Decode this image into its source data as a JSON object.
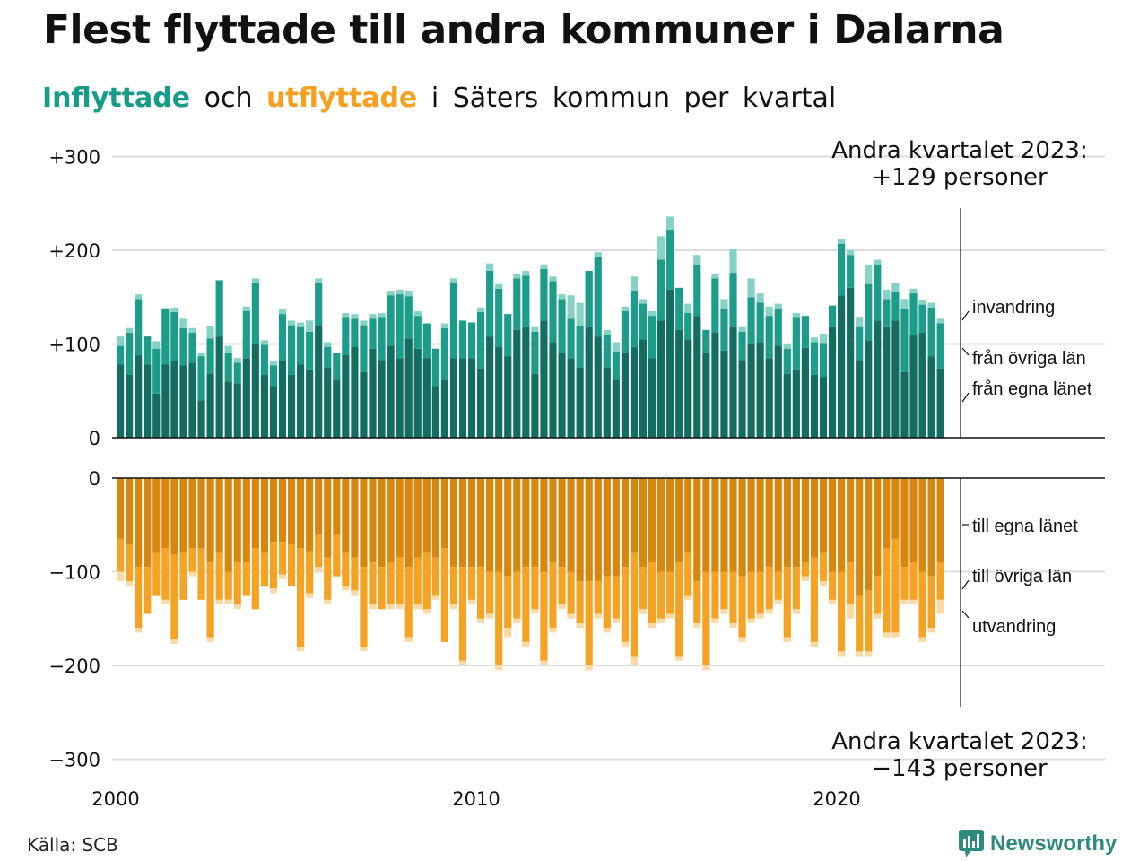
{
  "title": "Flest flyttade till andra kommuner i Dalarna",
  "subtitle": {
    "inflyttade": "Inflyttade",
    "och": "och",
    "utflyttade": "utflyttade",
    "rest": "i Säters kommun per kvartal"
  },
  "source": "Källa: SCB",
  "brand": "Newsworthy",
  "colors": {
    "in_egna": "#136e61",
    "in_ovriga": "#1d9c89",
    "in_invandring": "#86d3c6",
    "ut_egna": "#d6870f",
    "ut_ovriga": "#f5a324",
    "ut_utvandring": "#f9d9a6"
  },
  "chart_data": [
    {
      "type": "bar",
      "stacked": true,
      "panel": "top",
      "annotation_line1": "Andra kvartalet 2023:",
      "annotation_line2": "+129 personer",
      "yticks": [
        "+300",
        "+200",
        "+100",
        "0"
      ],
      "ylim": [
        0,
        300
      ],
      "xticks": [
        "2000",
        "2010",
        "2020"
      ],
      "x_start": "2000 Q1",
      "x_end": "2023 Q2",
      "series": [
        {
          "name": "från egna länet",
          "values": [
            78,
            67,
            88,
            78,
            47,
            78,
            82,
            77,
            80,
            40,
            68,
            108,
            60,
            58,
            85,
            100,
            67,
            55,
            82,
            67,
            78,
            73,
            120,
            75,
            62,
            88,
            97,
            70,
            95,
            83,
            98,
            85,
            106,
            95,
            85,
            55,
            62,
            85,
            85,
            85,
            74,
            108,
            97,
            87,
            115,
            118,
            68,
            125,
            102,
            90,
            85,
            75,
            118,
            108,
            75,
            62,
            90,
            97,
            105,
            85,
            125,
            158,
            115,
            105,
            130,
            90,
            112,
            93,
            118,
            83,
            100,
            102,
            85,
            98,
            68,
            73,
            96,
            67,
            65,
            118,
            152,
            160,
            83,
            104,
            125,
            118,
            125,
            70,
            110,
            112,
            87,
            74
          ]
        },
        {
          "name": "från övriga län",
          "values": [
            20,
            45,
            60,
            30,
            48,
            60,
            52,
            40,
            32,
            47,
            38,
            60,
            30,
            22,
            50,
            65,
            32,
            22,
            50,
            53,
            40,
            40,
            45,
            22,
            28,
            40,
            30,
            50,
            32,
            45,
            54,
            68,
            45,
            35,
            37,
            40,
            55,
            80,
            40,
            38,
            60,
            70,
            62,
            45,
            55,
            55,
            45,
            55,
            65,
            58,
            42,
            44,
            60,
            85,
            35,
            30,
            45,
            60,
            38,
            45,
            65,
            63,
            45,
            28,
            55,
            25,
            58,
            45,
            58,
            30,
            50,
            42,
            45,
            40,
            27,
            55,
            34,
            35,
            36,
            23,
            55,
            35,
            35,
            60,
            60,
            30,
            30,
            68,
            44,
            30,
            52,
            48
          ]
        },
        {
          "name": "invandring",
          "values": [
            10,
            5,
            5,
            0,
            8,
            0,
            5,
            10,
            5,
            3,
            13,
            0,
            8,
            5,
            5,
            5,
            5,
            5,
            5,
            5,
            5,
            12,
            5,
            5,
            0,
            5,
            5,
            5,
            5,
            5,
            5,
            5,
            5,
            5,
            0,
            0,
            5,
            5,
            0,
            0,
            5,
            8,
            5,
            0,
            5,
            5,
            5,
            5,
            5,
            5,
            25,
            25,
            0,
            5,
            5,
            10,
            5,
            15,
            5,
            5,
            25,
            15,
            0,
            10,
            10,
            0,
            5,
            10,
            25,
            5,
            20,
            10,
            10,
            5,
            5,
            5,
            0,
            5,
            10,
            0,
            5,
            5,
            10,
            20,
            5,
            10,
            10,
            10,
            5,
            5,
            5,
            5
          ]
        }
      ],
      "series_labels": [
        "invandring",
        "från övriga län",
        "från egna länet"
      ]
    },
    {
      "type": "bar",
      "stacked": true,
      "panel": "bottom",
      "annotation_line1": "Andra kvartalet 2023:",
      "annotation_line2": "−143 personer",
      "yticks": [
        "0",
        "−100",
        "−200",
        "−300"
      ],
      "ylim": [
        -300,
        0
      ],
      "series": [
        {
          "name": "till egna länet",
          "values": [
            -65,
            -70,
            -95,
            -95,
            -80,
            -75,
            -82,
            -80,
            -75,
            -75,
            -90,
            -80,
            -100,
            -90,
            -90,
            -75,
            -80,
            -68,
            -68,
            -70,
            -75,
            -78,
            -60,
            -85,
            -60,
            -80,
            -85,
            -95,
            -90,
            -95,
            -90,
            -85,
            -95,
            -85,
            -80,
            -85,
            -75,
            -95,
            -95,
            -95,
            -95,
            -100,
            -100,
            -105,
            -100,
            -95,
            -95,
            -100,
            -90,
            -95,
            -100,
            -110,
            -110,
            -110,
            -105,
            -105,
            -95,
            -80,
            -95,
            -90,
            -100,
            -100,
            -90,
            -80,
            -110,
            -100,
            -100,
            -100,
            -100,
            -105,
            -100,
            -100,
            -95,
            -100,
            -95,
            -95,
            -90,
            -85,
            -80,
            -100,
            -100,
            -90,
            -125,
            -120,
            -105,
            -75,
            -65,
            -95,
            -90,
            -100,
            -105,
            -90
          ]
        },
        {
          "name": "till övriga län",
          "values": [
            -35,
            -40,
            -65,
            -50,
            -45,
            -55,
            -90,
            -50,
            -25,
            -55,
            -80,
            -50,
            -30,
            -45,
            -35,
            -65,
            -35,
            -50,
            -35,
            -45,
            -105,
            -45,
            -35,
            -45,
            -45,
            -35,
            -35,
            -85,
            -45,
            -45,
            -45,
            -50,
            -75,
            -50,
            -60,
            -40,
            -100,
            -40,
            -100,
            -35,
            -55,
            -45,
            -100,
            -55,
            -50,
            -80,
            -45,
            -95,
            -70,
            -40,
            -45,
            -45,
            -90,
            -35,
            -55,
            -45,
            -80,
            -110,
            -45,
            -65,
            -50,
            -45,
            -100,
            -45,
            -45,
            -100,
            -50,
            -40,
            -55,
            -65,
            -50,
            -45,
            -45,
            -30,
            -75,
            -45,
            -15,
            -90,
            -30,
            -30,
            -85,
            -45,
            -60,
            -65,
            -40,
            -90,
            -100,
            -35,
            -40,
            -70,
            -55,
            -40
          ]
        },
        {
          "name": "utvandring",
          "values": [
            -10,
            -5,
            -5,
            0,
            0,
            -5,
            -5,
            0,
            -5,
            0,
            -5,
            -5,
            -5,
            -5,
            0,
            0,
            0,
            -5,
            -5,
            0,
            -5,
            -5,
            -5,
            -5,
            0,
            -5,
            -5,
            -5,
            -5,
            0,
            -5,
            -5,
            -5,
            -5,
            -5,
            -5,
            0,
            -5,
            -5,
            -5,
            -5,
            -5,
            -5,
            -10,
            -5,
            -5,
            -5,
            -5,
            -5,
            -5,
            -5,
            -5,
            -5,
            -5,
            -5,
            -5,
            -5,
            -10,
            -5,
            -5,
            -5,
            -5,
            -5,
            -5,
            -5,
            -5,
            -5,
            -5,
            -5,
            -5,
            -5,
            -5,
            -5,
            -5,
            -5,
            -5,
            -5,
            -5,
            -5,
            -5,
            -5,
            -15,
            -5,
            -5,
            -5,
            -5,
            -5,
            -5,
            -5,
            -5,
            -5,
            -15
          ]
        }
      ],
      "series_labels": [
        "till egna länet",
        "till övriga län",
        "utvandring"
      ]
    }
  ]
}
